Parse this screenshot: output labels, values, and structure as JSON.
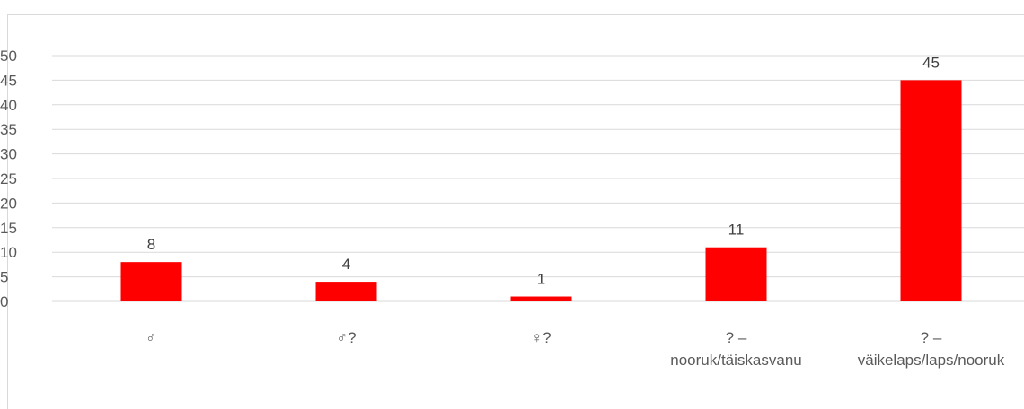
{
  "chart_data": {
    "type": "bar",
    "categories": [
      [
        "♂"
      ],
      [
        "♂?"
      ],
      [
        "♀?"
      ],
      [
        "? –",
        "nooruk/täiskasvanu"
      ],
      [
        "? –",
        "väikelaps/laps/nooruk"
      ]
    ],
    "values": [
      8,
      4,
      1,
      11,
      45
    ],
    "data_labels": [
      "8",
      "4",
      "1",
      "11",
      "45"
    ],
    "yticks": [
      "0",
      "5",
      "10",
      "15",
      "20",
      "25",
      "30",
      "35",
      "40",
      "45",
      "50"
    ],
    "ylim": [
      0,
      50
    ],
    "grid": true,
    "legend": "none",
    "bar_color": "#ff0000",
    "grid_color": "#d9d9d9",
    "title": "",
    "xlabel": "",
    "ylabel": ""
  }
}
